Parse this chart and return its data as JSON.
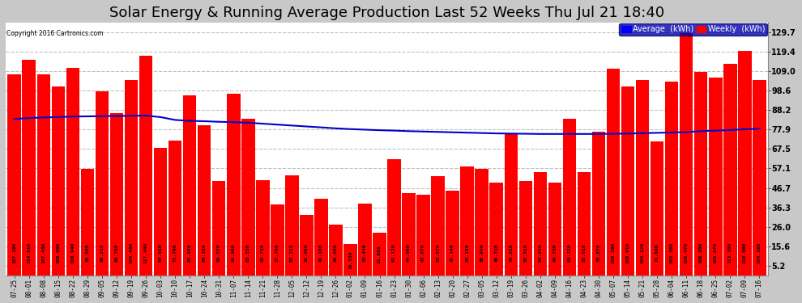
{
  "title": "Solar Energy & Running Average Production Last 52 Weeks Thu Jul 21 18:40",
  "copyright": "Copyright 2016 Cartronics.com",
  "bar_color": "#ff0000",
  "avg_line_color": "#0000cc",
  "fig_background": "#c8c8c8",
  "plot_background": "#ffffff",
  "ylabel_right_values": [
    5.2,
    15.6,
    26.0,
    36.3,
    46.7,
    57.1,
    67.5,
    77.9,
    88.2,
    98.6,
    109.0,
    119.4,
    129.7
  ],
  "ylim_max": 135,
  "categories": [
    "07-25",
    "08-01",
    "08-08",
    "08-15",
    "08-22",
    "08-29",
    "09-05",
    "09-12",
    "09-19",
    "09-26",
    "10-03",
    "10-10",
    "10-17",
    "10-24",
    "10-31",
    "11-07",
    "11-14",
    "11-21",
    "11-28",
    "12-05",
    "12-12",
    "12-19",
    "12-26",
    "01-02",
    "01-09",
    "01-16",
    "01-23",
    "01-30",
    "02-06",
    "02-13",
    "02-20",
    "02-27",
    "03-05",
    "03-12",
    "03-19",
    "03-26",
    "04-02",
    "04-09",
    "04-16",
    "04-23",
    "04-30",
    "05-07",
    "05-14",
    "05-21",
    "05-28",
    "06-04",
    "06-11",
    "06-18",
    "06-25",
    "07-02",
    "07-09",
    "07-16"
  ],
  "weekly_values": [
    107.19,
    114.91,
    107.43,
    100.8,
    110.94,
    56.98,
    98.21,
    86.76,
    104.43,
    117.44,
    68.01,
    71.79,
    95.95,
    80.1,
    50.57,
    96.9,
    83.55,
    50.73,
    37.79,
    53.21,
    32.06,
    41.1,
    26.93,
    16.53,
    38.44,
    22.88,
    62.12,
    44.06,
    43.07,
    53.07,
    45.14,
    58.15,
    56.94,
    49.73,
    76.01,
    50.51,
    54.94,
    49.73,
    83.72,
    55.01,
    76.87,
    110.29,
    100.91,
    104.12,
    71.6,
    103.36,
    129.47,
    108.5,
    105.67,
    113.1,
    119.9,
    104.16
  ],
  "avg_values": [
    83.5,
    84.0,
    84.3,
    84.5,
    84.8,
    84.9,
    85.0,
    85.1,
    85.2,
    85.3,
    84.5,
    83.0,
    82.5,
    82.3,
    82.0,
    81.8,
    81.5,
    81.0,
    80.5,
    80.0,
    79.5,
    79.0,
    78.5,
    78.1,
    77.8,
    77.5,
    77.3,
    77.0,
    76.8,
    76.6,
    76.4,
    76.2,
    76.0,
    75.8,
    75.7,
    75.6,
    75.5,
    75.5,
    75.5,
    75.5,
    75.5,
    75.6,
    75.7,
    75.9,
    76.1,
    76.3,
    76.5,
    77.0,
    77.3,
    77.6,
    78.0,
    78.3
  ],
  "legend_avg_color": "#0000ff",
  "legend_avg_label": "Average  (kWh)",
  "legend_weekly_color": "#ff0000",
  "legend_weekly_label": "Weekly  (kWh)",
  "legend_bg": "#0000aa",
  "title_fontsize": 13,
  "bar_label_fontsize": 4.5,
  "tick_label_fontsize": 5.5,
  "grid_color": "#c0c0c0",
  "grid_style": "--"
}
